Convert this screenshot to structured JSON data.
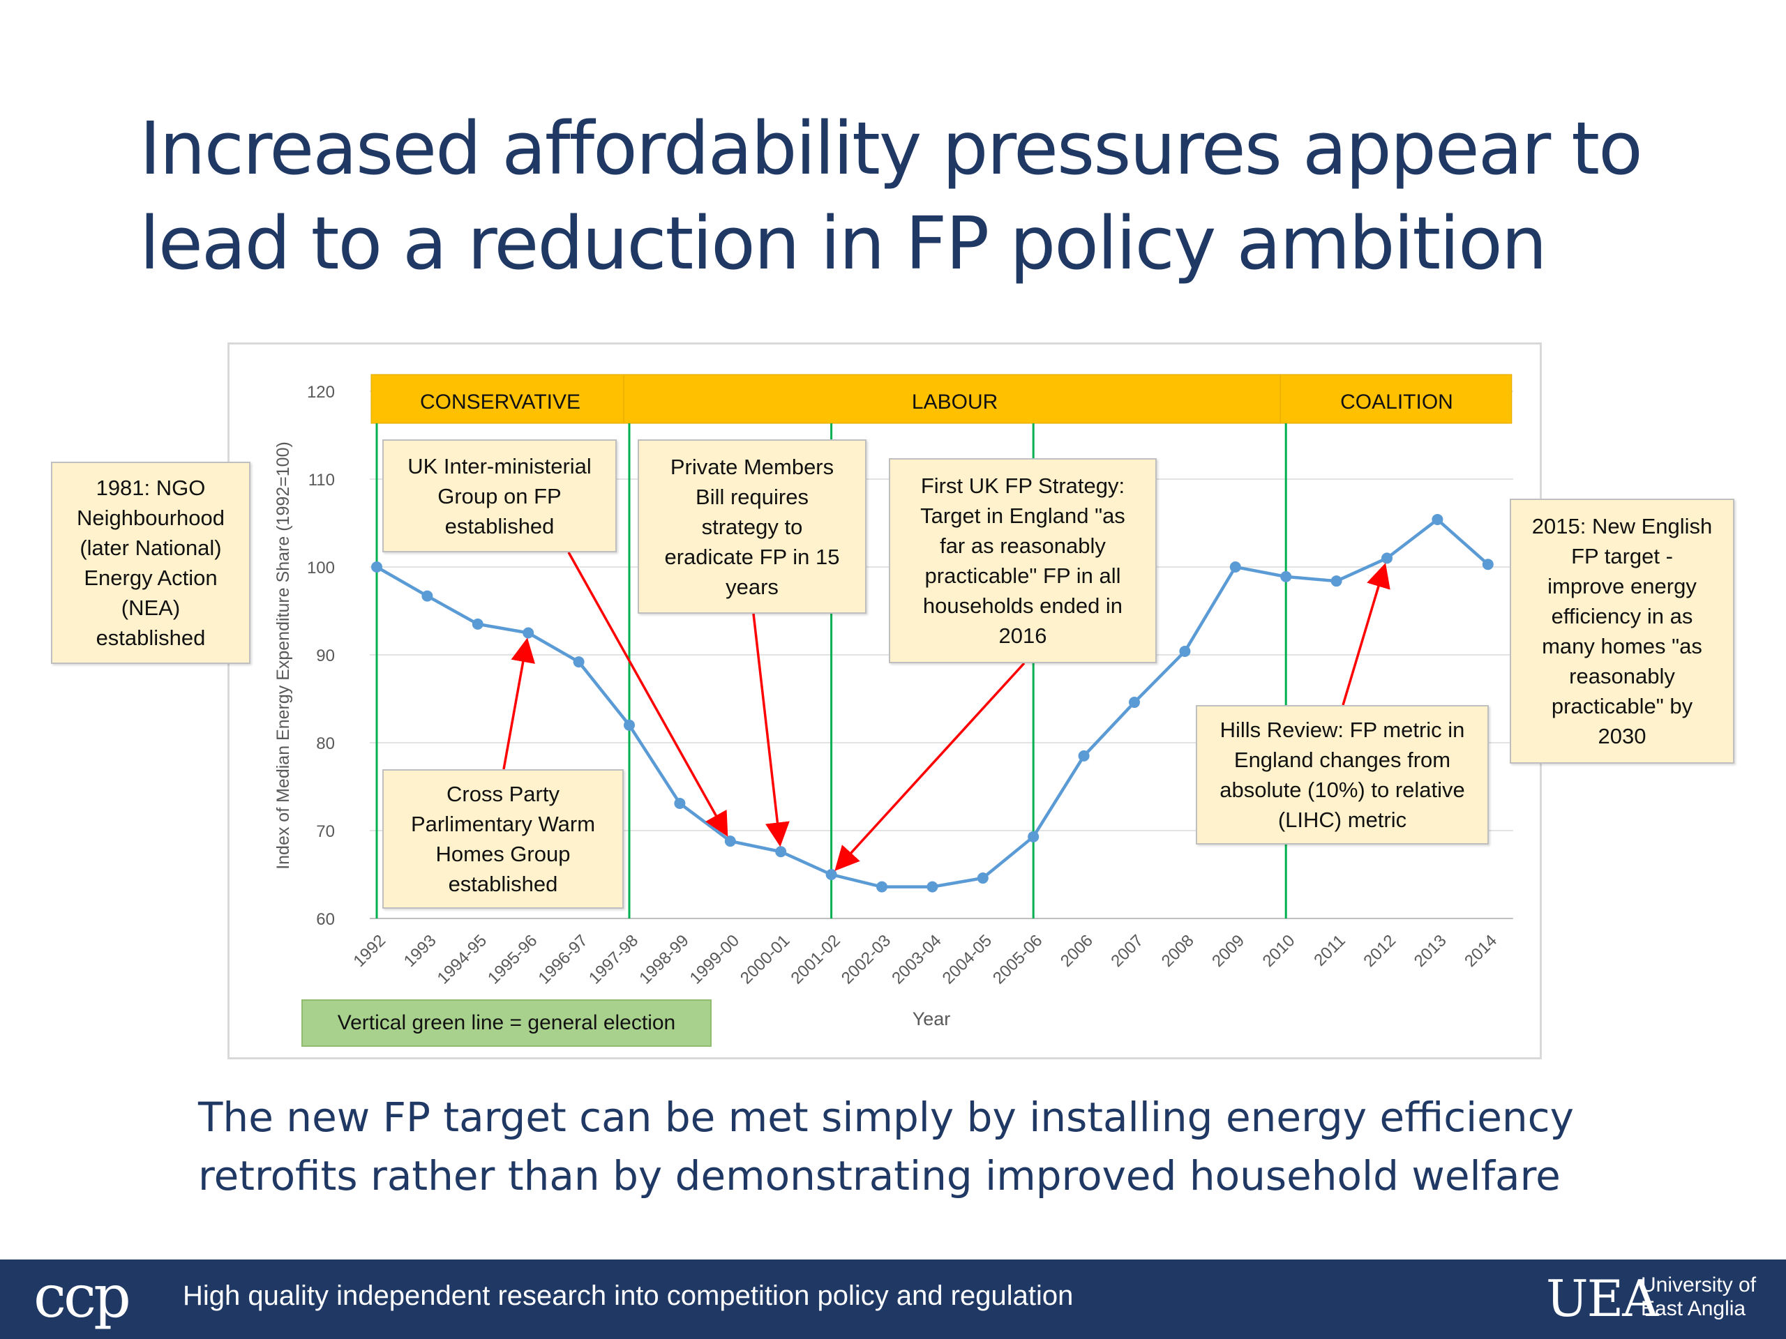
{
  "slide": {
    "title": "Increased affordability pressures appear to lead to a reduction in FP policy ambition",
    "bottom_text": "The new FP target can be met simply by installing energy efficiency retrofits rather than by demonstrating improved household welfare",
    "legend_note": "Vertical green line = general election"
  },
  "footer": {
    "logo": "ccp",
    "tagline": "High quality independent research into competition policy and regulation",
    "university_mark": "UEA",
    "university_name": "University of East Anglia"
  },
  "colors": {
    "line": "#5b9bd5",
    "election_line": "#00b050",
    "period_band": "#ffc000",
    "arrow": "#ff0000",
    "title": "#1f3864"
  },
  "chart_data": {
    "type": "line",
    "xlabel": "Year",
    "ylabel": "Index of Median Energy Expenditure Share (1992=100)",
    "ylim": [
      60,
      120
    ],
    "yticks": [
      60,
      70,
      80,
      90,
      100,
      110,
      120
    ],
    "grid": true,
    "categories": [
      "1992",
      "1993",
      "1994-95",
      "1995-96",
      "1996-97",
      "1997-98",
      "1998-99",
      "1999-00",
      "2000-01",
      "2001-02",
      "2002-03",
      "2003-04",
      "2004-05",
      "2005-06",
      "2006",
      "2007",
      "2008",
      "2009",
      "2010",
      "2011",
      "2012",
      "2013",
      "2014"
    ],
    "series": [
      {
        "name": "Index of Median Energy Expenditure Share",
        "values": [
          100,
          96.7,
          93.5,
          92.5,
          89.2,
          82,
          73.1,
          68.8,
          67.6,
          65,
          63.6,
          63.6,
          64.6,
          69.3,
          78.5,
          84.6,
          90.4,
          100,
          98.9,
          98.4,
          101,
          105.4,
          100.3
        ]
      }
    ],
    "periods": [
      {
        "label": "CONSERVATIVE",
        "from": 0,
        "to": 5
      },
      {
        "label": "LABOUR",
        "from": 5,
        "to": 18
      },
      {
        "label": "COALITION",
        "from": 18,
        "to": 22.5
      }
    ],
    "elections": [
      0,
      5,
      9,
      13,
      18
    ],
    "annotations": [
      {
        "text": "1981: NGO\nNeighbourhood\n(later National)\nEnergy Action\n(NEA)\nestablished"
      },
      {
        "text": "UK Inter-ministerial\nGroup on FP\nestablished",
        "points_to": 7
      },
      {
        "text": "Private Members\nBill requires\nstrategy to\neradicate FP in 15\nyears",
        "points_to": 8
      },
      {
        "text": "First UK FP Strategy:\nTarget in England \"as\nfar as reasonably\npracticable\" FP in all\nhouseholds ended in\n2016",
        "points_to": 9
      },
      {
        "text": "Cross Party\nParlimentary Warm\nHomes Group\nestablished",
        "points_to": 3
      },
      {
        "text": "Hills Review:  FP metric in\nEngland changes from\nabsolute (10%) to relative\n(LIHC) metric",
        "points_to": 20
      },
      {
        "text": "2015: New English\nFP target -\nimprove energy\nefficiency in as\nmany homes \"as\nreasonably\npracticable\" by\n2030"
      }
    ]
  }
}
